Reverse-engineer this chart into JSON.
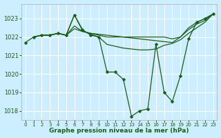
{
  "xlabel": "Graphe pression niveau de la mer (hPa)",
  "bg_color": "#cceeff",
  "grid_color": "#ffffff",
  "line_color": "#1a5c1a",
  "xlim": [
    -0.5,
    23.5
  ],
  "ylim": [
    1017.5,
    1023.8
  ],
  "yticks": [
    1018,
    1019,
    1020,
    1021,
    1022,
    1023
  ],
  "xticks": [
    0,
    1,
    2,
    3,
    4,
    5,
    6,
    7,
    8,
    9,
    10,
    11,
    12,
    13,
    14,
    15,
    16,
    17,
    18,
    19,
    20,
    21,
    22,
    23
  ],
  "main_x": [
    0,
    1,
    2,
    3,
    4,
    5,
    6,
    7,
    8,
    9,
    10,
    11,
    12,
    13,
    14,
    15,
    16,
    17,
    18,
    19,
    20,
    21,
    22,
    23
  ],
  "main_y": [
    1021.7,
    1022.0,
    1022.1,
    1022.1,
    1022.2,
    1022.1,
    1023.2,
    1022.4,
    1022.1,
    1022.0,
    1020.1,
    1020.1,
    1019.7,
    1017.7,
    1018.0,
    1018.1,
    1021.6,
    1019.0,
    1018.5,
    1019.9,
    1021.9,
    1022.8,
    1023.0,
    1023.25
  ],
  "line2_x": [
    1,
    2,
    3,
    4,
    5,
    6,
    7,
    8,
    9,
    10,
    11,
    12,
    13,
    14,
    15,
    16,
    17,
    18,
    19,
    20,
    21,
    22,
    23
  ],
  "line2_y": [
    1022.0,
    1022.1,
    1022.1,
    1022.2,
    1022.1,
    1022.45,
    1022.3,
    1022.2,
    1022.15,
    1022.1,
    1022.05,
    1022.0,
    1021.95,
    1021.9,
    1021.85,
    1021.8,
    1021.75,
    1021.7,
    1022.0,
    1022.5,
    1022.8,
    1023.0,
    1023.25
  ],
  "line3_x": [
    1,
    2,
    3,
    4,
    5,
    6,
    7,
    8,
    9,
    10,
    11,
    12,
    13,
    14,
    15,
    16,
    17,
    18,
    19,
    20,
    21,
    22,
    23
  ],
  "line3_y": [
    1022.0,
    1022.1,
    1022.1,
    1022.2,
    1022.1,
    1022.6,
    1022.3,
    1022.2,
    1022.1,
    1022.0,
    1022.0,
    1022.0,
    1022.0,
    1022.0,
    1022.0,
    1022.0,
    1022.0,
    1021.9,
    1022.0,
    1022.4,
    1022.7,
    1022.9,
    1023.25
  ],
  "line4_x": [
    1,
    2,
    3,
    4,
    5,
    6,
    7,
    8,
    9,
    10,
    11,
    12,
    13,
    14,
    15,
    16,
    17,
    18,
    19,
    20,
    21,
    22,
    23
  ],
  "line4_y": [
    1022.0,
    1022.1,
    1022.1,
    1022.2,
    1022.1,
    1023.2,
    1022.35,
    1022.15,
    1022.0,
    1021.6,
    1021.5,
    1021.4,
    1021.35,
    1021.3,
    1021.3,
    1021.35,
    1021.55,
    1021.65,
    1021.85,
    1022.2,
    1022.5,
    1022.8,
    1023.25
  ]
}
